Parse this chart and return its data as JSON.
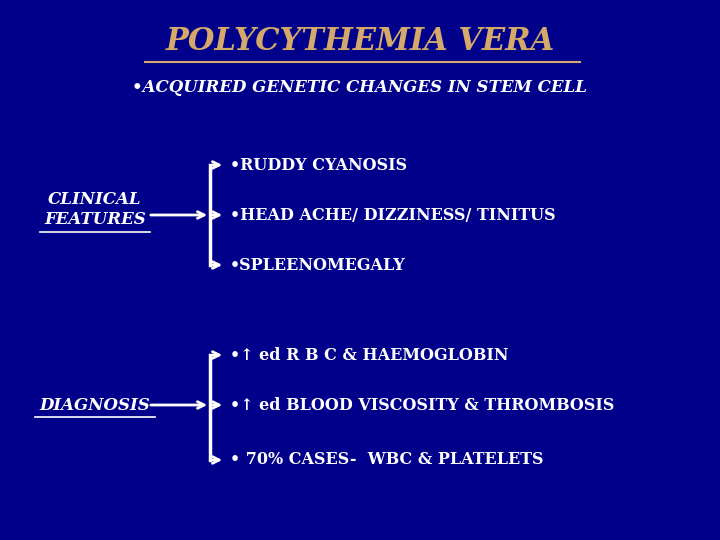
{
  "title": "POLYCYTHEMIA VERA",
  "subtitle": "•ACQUIRED GENETIC CHANGES IN STEM CELL",
  "bg_color": "#00008B",
  "title_color": "#D4A96A",
  "white": "#FFFFFF",
  "clinical_label_line1": "CLINICAL",
  "clinical_label_line2": "FEATURES",
  "diagnosis_label": "DIAGNOSIS",
  "clinical_items": [
    "•RUDDY CYANOSIS",
    "•HEAD ACHE/ DIZZINESS/ TINITUS",
    "•SPLEENOMEGALY"
  ],
  "diagnosis_items": [
    "•↑ ed R B C & HAEMOGLOBIN",
    "•↑ ed BLOOD VISCOSITY & THROMBOSIS",
    "• 70% CASES-  WBC & PLATELETS"
  ],
  "title_fontsize": 22,
  "subtitle_fontsize": 12,
  "label_fontsize": 12,
  "item_fontsize": 11.5
}
